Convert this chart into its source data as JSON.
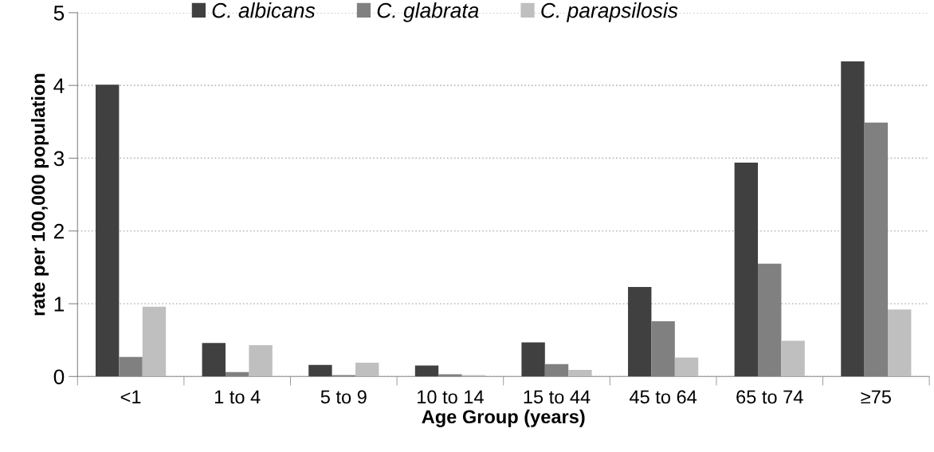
{
  "chart_data": {
    "type": "bar",
    "xlabel": "Age Group (years)",
    "ylabel": "rate per 100,000 population",
    "categories": [
      "<1",
      "1 to 4",
      "5 to 9",
      "10 to 14",
      "15 to 44",
      "45 to 64",
      "65 to 74",
      "≥75"
    ],
    "series": [
      {
        "name": "C. albicans",
        "color": "#404040",
        "values": [
          4.01,
          0.46,
          0.16,
          0.15,
          0.47,
          1.23,
          2.94,
          4.33
        ]
      },
      {
        "name": "C. glabrata",
        "color": "#808080",
        "values": [
          0.27,
          0.06,
          0.02,
          0.03,
          0.17,
          0.76,
          1.55,
          3.49
        ]
      },
      {
        "name": "C. parapsilosis",
        "color": "#bfbfbf",
        "values": [
          0.96,
          0.43,
          0.19,
          0.02,
          0.09,
          0.26,
          0.49,
          0.92
        ]
      }
    ],
    "ylim": [
      0,
      5
    ],
    "yticks": [
      0,
      1,
      2,
      3,
      4,
      5
    ],
    "grid": "y",
    "legend": "top"
  }
}
